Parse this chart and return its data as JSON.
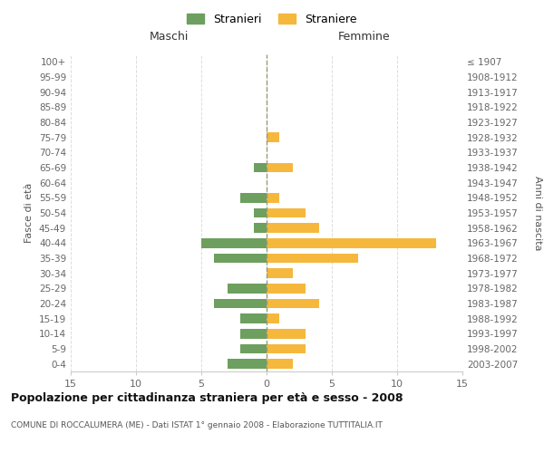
{
  "age_groups": [
    "0-4",
    "5-9",
    "10-14",
    "15-19",
    "20-24",
    "25-29",
    "30-34",
    "35-39",
    "40-44",
    "45-49",
    "50-54",
    "55-59",
    "60-64",
    "65-69",
    "70-74",
    "75-79",
    "80-84",
    "85-89",
    "90-94",
    "95-99",
    "100+"
  ],
  "birth_years": [
    "2003-2007",
    "1998-2002",
    "1993-1997",
    "1988-1992",
    "1983-1987",
    "1978-1982",
    "1973-1977",
    "1968-1972",
    "1963-1967",
    "1958-1962",
    "1953-1957",
    "1948-1952",
    "1943-1947",
    "1938-1942",
    "1933-1937",
    "1928-1932",
    "1923-1927",
    "1918-1922",
    "1913-1917",
    "1908-1912",
    "≤ 1907"
  ],
  "males": [
    3,
    2,
    2,
    2,
    4,
    3,
    0,
    4,
    5,
    1,
    1,
    2,
    0,
    1,
    0,
    0,
    0,
    0,
    0,
    0,
    0
  ],
  "females": [
    2,
    3,
    3,
    1,
    4,
    3,
    2,
    7,
    13,
    4,
    3,
    1,
    0,
    2,
    0,
    1,
    0,
    0,
    0,
    0,
    0
  ],
  "male_color": "#6d9f5e",
  "female_color": "#f5b83d",
  "grid_color": "#dddddd",
  "dashed_line_color": "#999977",
  "title": "Popolazione per cittadinanza straniera per età e sesso - 2008",
  "subtitle": "COMUNE DI ROCCALUMERA (ME) - Dati ISTAT 1° gennaio 2008 - Elaborazione TUTTITALIA.IT",
  "xlabel_left": "Maschi",
  "xlabel_right": "Femmine",
  "ylabel_left": "Fasce di età",
  "ylabel_right": "Anni di nascita",
  "legend_stranieri": "Stranieri",
  "legend_straniere": "Straniere",
  "xlim": 15,
  "background_color": "#ffffff"
}
